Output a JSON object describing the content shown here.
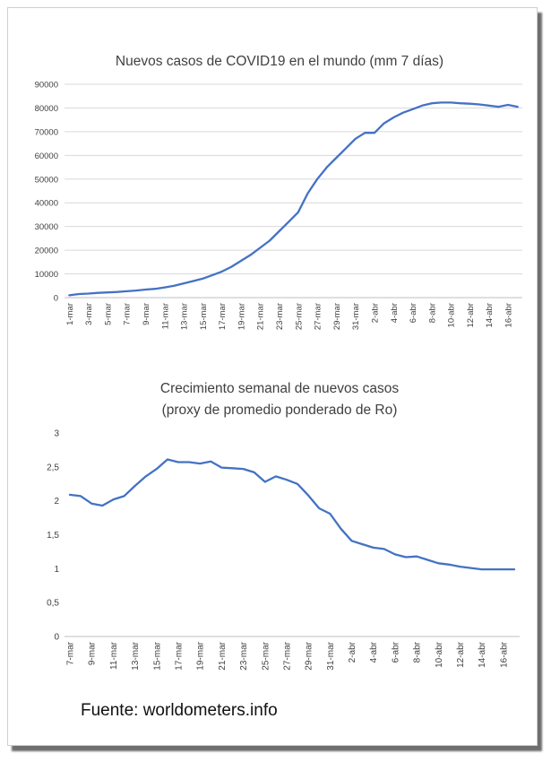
{
  "colors": {
    "line": "#4472C4",
    "grid": "#d9d9d9",
    "text": "#404040",
    "title": "#404040"
  },
  "source_text": "Fuente: worldometers.info",
  "chart_data": [
    {
      "type": "line",
      "title": "Nuevos casos de COVID19 en el mundo (mm 7 días)",
      "subtitle": "",
      "xlabel": "",
      "ylabel": "",
      "ylim": [
        0,
        90000
      ],
      "yticks": [
        "0",
        "10000",
        "20000",
        "30000",
        "40000",
        "50000",
        "60000",
        "70000",
        "80000",
        "90000"
      ],
      "grid": true,
      "x": [
        "1-mar",
        "2-mar",
        "3-mar",
        "4-mar",
        "5-mar",
        "6-mar",
        "7-mar",
        "8-mar",
        "9-mar",
        "10-mar",
        "11-mar",
        "12-mar",
        "13-mar",
        "14-mar",
        "15-mar",
        "16-mar",
        "17-mar",
        "18-mar",
        "19-mar",
        "20-mar",
        "21-mar",
        "22-mar",
        "23-mar",
        "24-mar",
        "25-mar",
        "26-mar",
        "27-mar",
        "28-mar",
        "29-mar",
        "30-mar",
        "31-mar",
        "1-abr",
        "2-abr",
        "3-abr",
        "4-abr",
        "5-abr",
        "6-abr",
        "7-abr",
        "8-abr",
        "9-abr",
        "10-abr",
        "11-abr",
        "12-abr",
        "13-abr",
        "14-abr",
        "15-abr",
        "16-abr",
        "17-abr"
      ],
      "x_tick_labels": [
        "1-mar",
        "3-mar",
        "5-mar",
        "7-mar",
        "9-mar",
        "11-mar",
        "13-mar",
        "15-mar",
        "17-mar",
        "19-mar",
        "21-mar",
        "23-mar",
        "25-mar",
        "27-mar",
        "29-mar",
        "31-mar",
        "2-abr",
        "4-abr",
        "6-abr",
        "8-abr",
        "10-abr",
        "12-abr",
        "14-abr",
        "16-abr"
      ],
      "series": [
        {
          "values": [
            1000,
            1500,
            1700,
            2000,
            2200,
            2400,
            2700,
            3000,
            3400,
            3700,
            4300,
            5000,
            6000,
            7000,
            8000,
            9500,
            11000,
            13000,
            15500,
            18000,
            21000,
            24000,
            28000,
            32000,
            36000,
            44000,
            50000,
            55000,
            59000,
            63000,
            67000,
            69500,
            69500,
            73500,
            76000,
            78000,
            79500,
            81000,
            82000,
            82300,
            82300,
            82000,
            81800,
            81500,
            81000,
            80500,
            81300,
            80500
          ]
        }
      ]
    },
    {
      "type": "line",
      "title": "Crecimiento semanal de nuevos casos",
      "subtitle": "(proxy de promedio ponderado de Ro)",
      "xlabel": "",
      "ylabel": "",
      "ylim": [
        0,
        3
      ],
      "yticks": [
        "0",
        "0,5",
        "1",
        "1,5",
        "2",
        "2,5",
        "3"
      ],
      "grid": false,
      "x": [
        "7-mar",
        "8-mar",
        "9-mar",
        "10-mar",
        "11-mar",
        "12-mar",
        "13-mar",
        "14-mar",
        "15-mar",
        "16-mar",
        "17-mar",
        "18-mar",
        "19-mar",
        "20-mar",
        "21-mar",
        "22-mar",
        "23-mar",
        "24-mar",
        "25-mar",
        "26-mar",
        "27-mar",
        "28-mar",
        "29-mar",
        "30-mar",
        "31-mar",
        "1-abr",
        "2-abr",
        "3-abr",
        "4-abr",
        "5-abr",
        "6-abr",
        "7-abr",
        "8-abr",
        "9-abr",
        "10-abr",
        "11-abr",
        "12-abr",
        "13-abr",
        "14-abr",
        "15-abr",
        "16-abr",
        "17-abr"
      ],
      "x_tick_labels": [
        "7-mar",
        "9-mar",
        "11-mar",
        "13-mar",
        "15-mar",
        "17-mar",
        "19-mar",
        "21-mar",
        "23-mar",
        "25-mar",
        "27-mar",
        "29-mar",
        "31-mar",
        "2-abr",
        "4-abr",
        "6-abr",
        "8-abr",
        "10-abr",
        "12-abr",
        "14-abr",
        "16-abr"
      ],
      "series": [
        {
          "values": [
            2.09,
            2.07,
            1.96,
            1.93,
            2.02,
            2.07,
            2.22,
            2.36,
            2.47,
            2.61,
            2.57,
            2.57,
            2.55,
            2.58,
            2.49,
            2.48,
            2.47,
            2.42,
            2.28,
            2.36,
            2.31,
            2.25,
            2.08,
            1.89,
            1.81,
            1.59,
            1.41,
            1.36,
            1.31,
            1.29,
            1.21,
            1.17,
            1.18,
            1.13,
            1.08,
            1.06,
            1.03,
            1.01,
            0.99,
            0.99,
            0.99,
            0.99
          ]
        }
      ]
    }
  ]
}
